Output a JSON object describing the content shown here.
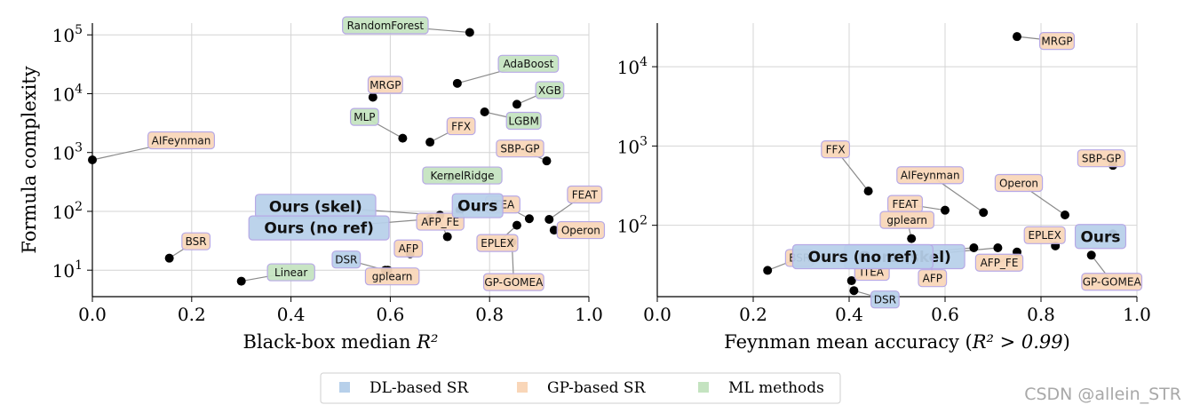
{
  "colors": {
    "dl": "#b7d0ea",
    "gp": "#f9d6b8",
    "ml": "#c4e3c0",
    "label_border": "#b7a9e6",
    "point": "#000000",
    "grid": "#d4d4d4",
    "watermark": "#a8a8a8"
  },
  "ylabel": "Formula complexity",
  "watermark": "CSDN @allein_STR",
  "legend": {
    "items": [
      {
        "label": "DL-based SR",
        "group": "dl"
      },
      {
        "label": "GP-based SR",
        "group": "gp"
      },
      {
        "label": "ML methods",
        "group": "ml"
      }
    ]
  },
  "chart_data": [
    {
      "type": "scatter",
      "xlabel_main": "Black-box median ",
      "xlabel_math": "R²",
      "xlim": [
        0.0,
        1.0
      ],
      "ylim_log10": [
        0.55,
        5.2
      ],
      "xticks": [
        "0.0",
        "0.2",
        "0.4",
        "0.6",
        "0.8",
        "1.0"
      ],
      "yticks": [
        {
          "base": "10",
          "exp": "1",
          "value": 10
        },
        {
          "base": "10",
          "exp": "2",
          "value": 100
        },
        {
          "base": "10",
          "exp": "3",
          "value": 1000
        },
        {
          "base": "10",
          "exp": "4",
          "value": 10000
        },
        {
          "base": "10",
          "exp": "5",
          "value": 100000
        }
      ],
      "points": [
        {
          "name": "RandomForest",
          "group": "ml",
          "x": 0.76,
          "y": 110000
        },
        {
          "name": "AdaBoost",
          "group": "ml",
          "x": 0.735,
          "y": 15000
        },
        {
          "name": "XGB",
          "group": "ml",
          "x": 0.855,
          "y": 6600
        },
        {
          "name": "LGBM",
          "group": "ml",
          "x": 0.79,
          "y": 4900
        },
        {
          "name": "MLP",
          "group": "ml",
          "x": 0.625,
          "y": 1750
        },
        {
          "name": "KernelRidge",
          "group": "ml",
          "x": 0.72,
          "y": 380
        },
        {
          "name": "Linear",
          "group": "ml",
          "x": 0.3,
          "y": 6.5
        },
        {
          "name": "MRGP",
          "group": "gp",
          "x": 0.565,
          "y": 8700
        },
        {
          "name": "FFX",
          "group": "gp",
          "x": 0.68,
          "y": 1500
        },
        {
          "name": "AIFeynman",
          "group": "gp",
          "x": 0.0,
          "y": 750
        },
        {
          "name": "SBP-GP",
          "group": "gp",
          "x": 0.915,
          "y": 720
        },
        {
          "name": "FEAT",
          "group": "gp",
          "x": 0.92,
          "y": 73
        },
        {
          "name": "Operon",
          "group": "gp",
          "x": 0.93,
          "y": 48
        },
        {
          "name": "ITEA",
          "group": "gp",
          "x": 0.88,
          "y": 75
        },
        {
          "name": "EPLEX",
          "group": "gp",
          "x": 0.855,
          "y": 58
        },
        {
          "name": "GP-GOMEA",
          "group": "gp",
          "x": 0.845,
          "y": 30
        },
        {
          "name": "AFP_FE",
          "group": "gp",
          "x": 0.715,
          "y": 37
        },
        {
          "name": "AFP",
          "group": "gp",
          "x": 0.64,
          "y": 19
        },
        {
          "name": "gplearn",
          "group": "gp",
          "x": 0.595,
          "y": 10
        },
        {
          "name": "BSR",
          "group": "gp",
          "x": 0.155,
          "y": 16
        },
        {
          "name": "DSR",
          "group": "dl",
          "x": 0.59,
          "y": 10
        },
        {
          "name": "Ours",
          "group": "dl",
          "x": 0.74,
          "y": 105,
          "big": true
        },
        {
          "name": "Ours (skel)",
          "group": "dl",
          "x": 0.7,
          "y": 86,
          "big": true
        },
        {
          "name": "Ours (no ref)",
          "group": "dl",
          "x": 0.68,
          "y": 74,
          "big": true
        }
      ]
    },
    {
      "type": "scatter",
      "xlabel_main": "Feynman mean accuracy (",
      "xlabel_math": "R² > 0.99",
      "xlabel_end": ")",
      "xlim": [
        0.0,
        1.0
      ],
      "ylim_log10": [
        1.1,
        4.55
      ],
      "xticks": [
        "0.0",
        "0.2",
        "0.4",
        "0.6",
        "0.8",
        "1.0"
      ],
      "yticks": [
        {
          "base": "10",
          "exp": "2",
          "value": 100
        },
        {
          "base": "10",
          "exp": "3",
          "value": 1000
        },
        {
          "base": "10",
          "exp": "4",
          "value": 10000
        }
      ],
      "points": [
        {
          "name": "MRGP",
          "group": "gp",
          "x": 0.75,
          "y": 24000
        },
        {
          "name": "SBP-GP",
          "group": "gp",
          "x": 0.95,
          "y": 570
        },
        {
          "name": "FFX",
          "group": "gp",
          "x": 0.44,
          "y": 270
        },
        {
          "name": "AIFeynman",
          "group": "gp",
          "x": 0.68,
          "y": 145
        },
        {
          "name": "FEAT",
          "group": "gp",
          "x": 0.6,
          "y": 155
        },
        {
          "name": "Operon",
          "group": "gp",
          "x": 0.85,
          "y": 135
        },
        {
          "name": "gplearn",
          "group": "gp",
          "x": 0.53,
          "y": 68
        },
        {
          "name": "EPLEX",
          "group": "gp",
          "x": 0.83,
          "y": 55
        },
        {
          "name": "AFP_FE",
          "group": "gp",
          "x": 0.75,
          "y": 46
        },
        {
          "name": "GP-GOMEA",
          "group": "gp",
          "x": 0.905,
          "y": 42
        },
        {
          "name": "AFP",
          "group": "gp",
          "x": 0.57,
          "y": 40
        },
        {
          "name": "BSR",
          "group": "gp",
          "x": 0.23,
          "y": 27
        },
        {
          "name": "ITEA",
          "group": "gp",
          "x": 0.405,
          "y": 20
        },
        {
          "name": "DSR",
          "group": "dl",
          "x": 0.41,
          "y": 15
        },
        {
          "name": "Ours",
          "group": "dl",
          "x": 0.95,
          "y": 78,
          "big": true
        },
        {
          "name": "Ours (skel)",
          "group": "dl",
          "x": 0.71,
          "y": 52,
          "big": true
        },
        {
          "name": "Ours (no ref)",
          "group": "dl",
          "x": 0.66,
          "y": 52,
          "big": true
        }
      ]
    }
  ]
}
